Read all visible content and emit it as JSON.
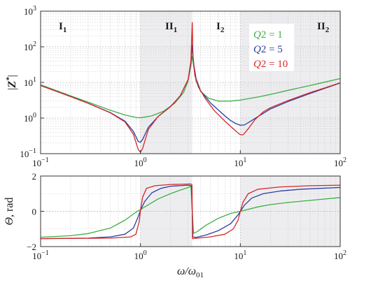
{
  "chart_data": [
    {
      "type": "line",
      "ylabel": "|Z*|",
      "xscale": "log",
      "yscale": "log",
      "xlim": [
        0.1,
        100
      ],
      "ylim": [
        0.1,
        1000
      ],
      "x_ticks": [
        0.1,
        1,
        10,
        100
      ],
      "x_tick_labels": [
        "10^-1",
        "10^0",
        "10^1",
        "10^2"
      ],
      "y_ticks": [
        0.1,
        1,
        10,
        100,
        1000
      ],
      "y_tick_labels": [
        "10^-1",
        "10^0",
        "10^1",
        "10^2",
        "10^3"
      ],
      "grid": true,
      "regions": [
        {
          "label": "I",
          "sub": "1",
          "x_from": 0.1,
          "x_to": 1,
          "shaded": false
        },
        {
          "label": "II",
          "sub": "1",
          "x_from": 1,
          "x_to": 3.3,
          "shaded": true
        },
        {
          "label": "I",
          "sub": "2",
          "x_from": 3.3,
          "x_to": 10,
          "shaded": false
        },
        {
          "label": "II",
          "sub": "2",
          "x_from": 10,
          "x_to": 100,
          "shaded": true
        }
      ],
      "legend_position": "upper-right",
      "series": [
        {
          "name": "Q2 = 1",
          "color": "#3cb043",
          "points": [
            [
              0.1,
              8.6
            ],
            [
              0.2,
              4.2
            ],
            [
              0.3,
              2.8
            ],
            [
              0.5,
              1.65
            ],
            [
              0.7,
              1.22
            ],
            [
              0.9,
              1.04
            ],
            [
              1.0,
              1.02
            ],
            [
              1.3,
              1.15
            ],
            [
              1.7,
              1.55
            ],
            [
              2.2,
              2.6
            ],
            [
              2.7,
              5.2
            ],
            [
              3.0,
              11
            ],
            [
              3.2,
              30
            ],
            [
              3.3,
              55
            ],
            [
              3.4,
              30
            ],
            [
              3.6,
              11
            ],
            [
              4.0,
              5.6
            ],
            [
              4.8,
              3.6
            ],
            [
              6,
              3.0
            ],
            [
              8,
              3.0
            ],
            [
              10,
              3.2
            ],
            [
              15,
              3.9
            ],
            [
              20,
              4.6
            ],
            [
              30,
              6.0
            ],
            [
              50,
              8.2
            ],
            [
              70,
              10.2
            ],
            [
              100,
              12.8
            ]
          ]
        },
        {
          "name": "Q2 = 5",
          "color": "#2c3e9e",
          "points": [
            [
              0.1,
              8.2
            ],
            [
              0.2,
              4.0
            ],
            [
              0.3,
              2.6
            ],
            [
              0.5,
              1.42
            ],
            [
              0.7,
              0.82
            ],
            [
              0.85,
              0.42
            ],
            [
              0.95,
              0.22
            ],
            [
              1.0,
              0.21
            ],
            [
              1.05,
              0.25
            ],
            [
              1.2,
              0.55
            ],
            [
              1.5,
              1.1
            ],
            [
              2.0,
              2.1
            ],
            [
              2.5,
              4.2
            ],
            [
              3.0,
              12
            ],
            [
              3.2,
              35
            ],
            [
              3.3,
              110
            ],
            [
              3.4,
              35
            ],
            [
              3.6,
              13
            ],
            [
              4.0,
              5.8
            ],
            [
              5,
              2.7
            ],
            [
              6,
              1.7
            ],
            [
              7,
              1.15
            ],
            [
              8,
              0.85
            ],
            [
              9,
              0.7
            ],
            [
              10,
              0.63
            ],
            [
              11,
              0.64
            ],
            [
              13,
              0.85
            ],
            [
              15,
              1.1
            ],
            [
              20,
              1.8
            ],
            [
              30,
              2.9
            ],
            [
              50,
              4.9
            ],
            [
              70,
              6.8
            ],
            [
              100,
              9.6
            ]
          ]
        },
        {
          "name": "Q2 = 10",
          "color": "#d62728",
          "points": [
            [
              0.1,
              8.2
            ],
            [
              0.2,
              4.0
            ],
            [
              0.3,
              2.6
            ],
            [
              0.5,
              1.4
            ],
            [
              0.7,
              0.78
            ],
            [
              0.85,
              0.35
            ],
            [
              0.95,
              0.13
            ],
            [
              1.0,
              0.11
            ],
            [
              1.05,
              0.14
            ],
            [
              1.2,
              0.48
            ],
            [
              1.5,
              1.1
            ],
            [
              2.0,
              2.1
            ],
            [
              2.5,
              4.2
            ],
            [
              3.0,
              12
            ],
            [
              3.2,
              40
            ],
            [
              3.3,
              480
            ],
            [
              3.35,
              60
            ],
            [
              3.5,
              16
            ],
            [
              3.8,
              7.5
            ],
            [
              4.5,
              3.4
            ],
            [
              5.5,
              1.6
            ],
            [
              7,
              0.82
            ],
            [
              8.5,
              0.5
            ],
            [
              9.5,
              0.38
            ],
            [
              10,
              0.34
            ],
            [
              10.7,
              0.34
            ],
            [
              12,
              0.5
            ],
            [
              14,
              0.9
            ],
            [
              17,
              1.5
            ],
            [
              20,
              1.95
            ],
            [
              30,
              3.1
            ],
            [
              50,
              5.2
            ],
            [
              70,
              7.0
            ],
            [
              100,
              9.8
            ]
          ]
        }
      ]
    },
    {
      "type": "line",
      "xlabel": "ω/ω01",
      "ylabel": "Θ, rad",
      "xscale": "log",
      "xlim": [
        0.1,
        100
      ],
      "ylim": [
        -2,
        2
      ],
      "x_ticks": [
        0.1,
        1,
        10,
        100
      ],
      "x_tick_labels": [
        "10^-1",
        "10^0",
        "10^1",
        "10^2"
      ],
      "y_ticks": [
        -2,
        0,
        2
      ],
      "y_tick_labels": [
        "−2",
        "0",
        "2"
      ],
      "grid": true,
      "series": [
        {
          "name": "Q2 = 1",
          "color": "#3cb043",
          "points": [
            [
              0.1,
              -1.47
            ],
            [
              0.2,
              -1.38
            ],
            [
              0.3,
              -1.26
            ],
            [
              0.5,
              -0.95
            ],
            [
              0.7,
              -0.5
            ],
            [
              0.9,
              -0.05
            ],
            [
              1.0,
              0.1
            ],
            [
              1.5,
              0.7
            ],
            [
              2.0,
              1.0
            ],
            [
              2.5,
              1.2
            ],
            [
              3.0,
              1.35
            ],
            [
              3.2,
              1.42
            ],
            [
              3.3,
              0.0
            ],
            [
              3.4,
              -1.25
            ],
            [
              3.7,
              -1.15
            ],
            [
              4.5,
              -0.8
            ],
            [
              6,
              -0.4
            ],
            [
              8,
              -0.12
            ],
            [
              10,
              0.0
            ],
            [
              15,
              0.25
            ],
            [
              20,
              0.38
            ],
            [
              30,
              0.5
            ],
            [
              50,
              0.62
            ],
            [
              100,
              0.78
            ]
          ]
        },
        {
          "name": "Q2 = 5",
          "color": "#2c3e9e",
          "points": [
            [
              0.1,
              -1.55
            ],
            [
              0.3,
              -1.52
            ],
            [
              0.5,
              -1.45
            ],
            [
              0.7,
              -1.3
            ],
            [
              0.85,
              -0.95
            ],
            [
              0.95,
              -0.3
            ],
            [
              1.0,
              0.05
            ],
            [
              1.1,
              0.55
            ],
            [
              1.3,
              1.05
            ],
            [
              1.6,
              1.3
            ],
            [
              2.0,
              1.42
            ],
            [
              3.0,
              1.48
            ],
            [
              3.25,
              1.45
            ],
            [
              3.3,
              0.0
            ],
            [
              3.35,
              -1.45
            ],
            [
              3.6,
              -1.48
            ],
            [
              4.5,
              -1.35
            ],
            [
              6,
              -1.1
            ],
            [
              8,
              -0.7
            ],
            [
              9.5,
              -0.2
            ],
            [
              10,
              0.0
            ],
            [
              11,
              0.35
            ],
            [
              13,
              0.75
            ],
            [
              17,
              1.0
            ],
            [
              25,
              1.15
            ],
            [
              40,
              1.25
            ],
            [
              100,
              1.35
            ]
          ]
        },
        {
          "name": "Q2 = 10",
          "color": "#d62728",
          "points": [
            [
              0.1,
              -1.55
            ],
            [
              0.5,
              -1.52
            ],
            [
              0.8,
              -1.45
            ],
            [
              0.9,
              -1.3
            ],
            [
              0.97,
              -0.6
            ],
            [
              1.0,
              0.05
            ],
            [
              1.05,
              0.8
            ],
            [
              1.15,
              1.3
            ],
            [
              1.4,
              1.45
            ],
            [
              2.0,
              1.52
            ],
            [
              3.2,
              1.55
            ],
            [
              3.28,
              1.5
            ],
            [
              3.3,
              0.0
            ],
            [
              3.32,
              -1.55
            ],
            [
              3.6,
              -1.53
            ],
            [
              5,
              -1.45
            ],
            [
              7,
              -1.3
            ],
            [
              8.5,
              -1.0
            ],
            [
              9.5,
              -0.5
            ],
            [
              10,
              0.0
            ],
            [
              10.6,
              0.5
            ],
            [
              12,
              1.0
            ],
            [
              15,
              1.25
            ],
            [
              25,
              1.38
            ],
            [
              50,
              1.45
            ],
            [
              100,
              1.48
            ]
          ]
        }
      ]
    }
  ]
}
